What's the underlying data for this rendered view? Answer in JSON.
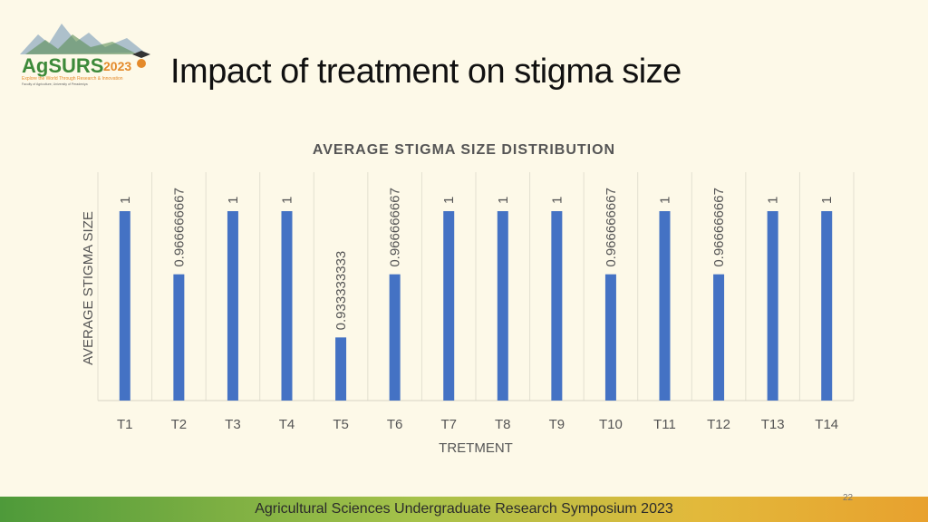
{
  "slide": {
    "title": "Impact of treatment on stigma size",
    "footer": "Agricultural Sciences Undergraduate Research Symposium 2023",
    "page_number": "22"
  },
  "logo": {
    "name": "AgSURS",
    "year": "2023",
    "tagline": "Explore the World Through Research & Innovation",
    "subtagline": "Faculty of Agriculture, University of Peradeniya",
    "colors": {
      "green": "#3d8a3a",
      "orange": "#e48a2a",
      "mountain": "#6c8fa8"
    }
  },
  "chart_data": {
    "type": "bar",
    "title": "AVERAGE STIGMA SIZE DISTRIBUTION",
    "xlabel": "TRETMENT",
    "ylabel": "AVERAGE STIGMA SIZE",
    "categories": [
      "T1",
      "T2",
      "T3",
      "T4",
      "T5",
      "T6",
      "T7",
      "T8",
      "T9",
      "T10",
      "T11",
      "T12",
      "T13",
      "T14"
    ],
    "values": [
      1,
      0.966666667,
      1,
      1,
      0.933333333,
      0.966666667,
      1,
      1,
      1,
      0.966666667,
      1,
      0.966666667,
      1,
      1
    ],
    "data_labels": [
      "1",
      "0.966666667",
      "1",
      "1",
      "0.933333333",
      "0.966666667",
      "1",
      "1",
      "1",
      "0.966666667",
      "1",
      "0.966666667",
      "1",
      "1"
    ],
    "ylim": [
      0.9,
      1.0
    ],
    "bar_color": "#4472c4",
    "grid": true
  }
}
